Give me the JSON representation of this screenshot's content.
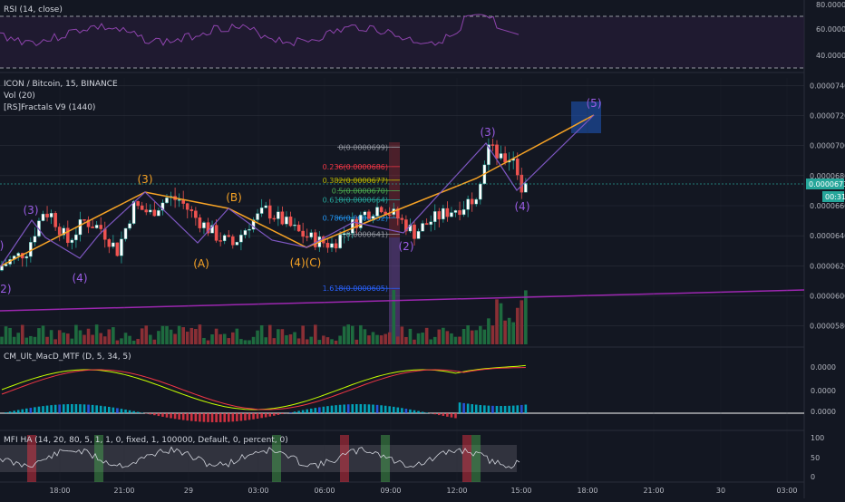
{
  "colors": {
    "background": "#131722",
    "bull": "#26a69a",
    "bear": "#ef5350",
    "grid": "#2a2e39",
    "axis_text": "#b2b5be",
    "wave": "#9b5de5",
    "trend": "#f7a325",
    "rsi": "#8e44ad",
    "fib_target": "#1e53b4"
  },
  "rsi_pane": {
    "title": "RSI (14, close)",
    "axis_labels": [
      "80.0000",
      "60.0000",
      "40.0000"
    ]
  },
  "main_pane": {
    "title": "ICON / Bitcoin, 15, BINANCE",
    "indicators": [
      "Vol (20)",
      "[RS]Fractals V9 (1440)"
    ],
    "price_labels": [
      "0.0000740",
      "0.0000720",
      "0.0000700",
      "0.0000680",
      "0.0000660",
      "0.0000640",
      "0.0000620",
      "0.0000600",
      "0.0000580"
    ],
    "last_price": "0.0000673",
    "countdown": "00:31"
  },
  "wave_labels": [
    {
      "text": ")",
      "color": "wave"
    },
    {
      "text": "(3)",
      "color": "wave"
    },
    {
      "text": "(2)",
      "color": "wave"
    },
    {
      "text": "(4)",
      "color": "wave"
    },
    {
      "text": "(3)",
      "color": "trend"
    },
    {
      "text": "(B)",
      "color": "trend"
    },
    {
      "text": "(A)",
      "color": "trend"
    },
    {
      "text": "(4)(C)",
      "color": "trend"
    },
    {
      "text": "(2)",
      "color": "wave"
    },
    {
      "text": "(3)",
      "color": "wave"
    },
    {
      "text": "(4)",
      "color": "wave"
    },
    {
      "text": "(5)",
      "color": "wave"
    }
  ],
  "fib_levels": [
    {
      "label": "0(0.0000699)",
      "color": "#9598a1"
    },
    {
      "label": "0.236(0.0000686)",
      "color": "#f23645"
    },
    {
      "label": "0.382(0.0000677)",
      "color": "#b8b400"
    },
    {
      "label": "0.5(0.0000670)",
      "color": "#4caf50"
    },
    {
      "label": "0.618(0.0000664)",
      "color": "#26a69a"
    },
    {
      "label": "0.786(0.0000652)",
      "color": "#2196f3"
    },
    {
      "label": "1(0.0000641)",
      "color": "#9598a1"
    },
    {
      "label": "1.618(0.0000605)",
      "color": "#2962ff"
    }
  ],
  "macd_pane": {
    "title": "CM_Ult_MacD_MTF (D, 5, 34, 5)",
    "axis_labels": [
      "0.0000",
      "0.0000",
      "0.0000"
    ],
    "current_label": "0.0000"
  },
  "mfi_pane": {
    "title": "MFI HA (14, 20, 80, 5, 1, 1, 0, fixed, 1, 100000, Default, 0, percent, 0)",
    "axis_labels": [
      "100",
      "50",
      "0"
    ]
  },
  "time_axis": {
    "labels": [
      "18:00",
      "21:00",
      "29",
      "03:00",
      "06:00",
      "09:00",
      "12:00",
      "15:00",
      "18:00",
      "21:00",
      "30",
      "03:00"
    ]
  },
  "chart_data": {
    "type": "candlestick",
    "title": "ICON / Bitcoin, 15, BINANCE",
    "x_range": [
      "28 16:30",
      "30 04:00"
    ],
    "ylim": [
      5.75e-05,
      7.45e-05
    ],
    "close_path": [
      [
        0,
        6.2e-05
      ],
      [
        6,
        6.3e-05
      ],
      [
        10,
        6.56e-05
      ],
      [
        12,
        6.54e-05
      ],
      [
        16,
        6.36e-05
      ],
      [
        20,
        6.5e-05
      ],
      [
        24,
        6.45e-05
      ],
      [
        28,
        6.3e-05
      ],
      [
        32,
        6.6e-05
      ],
      [
        36,
        6.55e-05
      ],
      [
        40,
        6.65e-05
      ],
      [
        43,
        6.64e-05
      ],
      [
        47,
        6.52e-05
      ],
      [
        52,
        6.4e-05
      ],
      [
        56,
        6.34e-05
      ],
      [
        60,
        6.48e-05
      ],
      [
        64,
        6.57e-05
      ],
      [
        68,
        6.5e-05
      ],
      [
        72,
        6.42e-05
      ],
      [
        76,
        6.37e-05
      ],
      [
        80,
        6.34e-05
      ],
      [
        84,
        6.45e-05
      ],
      [
        88,
        6.55e-05
      ],
      [
        92,
        6.6e-05
      ],
      [
        96,
        6.52e-05
      ],
      [
        100,
        6.42e-05
      ],
      [
        104,
        6.5e-05
      ],
      [
        108,
        6.56e-05
      ],
      [
        112,
        6.6e-05
      ],
      [
        115,
        6.69e-05
      ],
      [
        118,
        7e-05
      ],
      [
        121,
        6.9e-05
      ],
      [
        124,
        6.93e-05
      ],
      [
        126,
        6.71e-05
      ],
      [
        127,
        6.73e-05
      ]
    ],
    "fractal_projection": [
      [
        127,
        6.73e-05
      ],
      [
        145,
        7.17e-05
      ]
    ],
    "trend_channel": [
      [
        0,
        5.97e-05
      ],
      [
        170,
        6.08e-05
      ]
    ],
    "fib_retracement": {
      "start": 6.99e-05,
      "end": 6.41e-05
    }
  }
}
